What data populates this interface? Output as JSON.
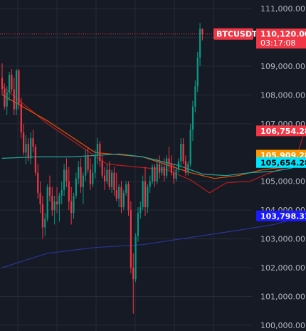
{
  "chart_data": {
    "type": "candlestick",
    "symbol_label": "BTCUSDT",
    "last_price": "110,120.00",
    "countdown": "03:17:08",
    "ylim": [
      99800,
      111300
    ],
    "y_ticks": [
      {
        "value": 111000,
        "label": "111,000.00"
      },
      {
        "value": 110000,
        "label": "110,000.00"
      },
      {
        "value": 109000,
        "label": "109,000.00"
      },
      {
        "value": 108000,
        "label": "108,000.00"
      },
      {
        "value": 107000,
        "label": "107,000.00"
      },
      {
        "value": 105000,
        "label": "105,000.00"
      },
      {
        "value": 104000,
        "label": "104,000.00"
      },
      {
        "value": 103000,
        "label": "103,000.00"
      },
      {
        "value": 102000,
        "label": "102,000.00"
      },
      {
        "value": 101000,
        "label": "101,000.00"
      },
      {
        "value": 100000,
        "label": "100,000.00"
      }
    ],
    "price_badges": [
      {
        "value": 110120.0,
        "label": "110,120.00",
        "color": "#f23645"
      },
      {
        "value": 106754.28,
        "label": "106,754.28",
        "color": "#f23645"
      },
      {
        "value": 105909.28,
        "label": "105,909.28",
        "color": "#ff9800"
      },
      {
        "value": 105654.28,
        "label": "105,654.28",
        "color": "#00e5ff"
      },
      {
        "value": 103798.31,
        "label": "103,798.31",
        "color": "#1a1aff"
      }
    ],
    "ma_lines": [
      {
        "color": "#b71c1c",
        "values": [
          [
            1,
            108300
          ],
          [
            20,
            107000
          ],
          [
            45,
            105600
          ],
          [
            70,
            105400
          ],
          [
            80,
            105050
          ],
          [
            88,
            104600
          ],
          [
            95,
            104950
          ],
          [
            105,
            105000
          ],
          [
            112,
            105250
          ],
          [
            120,
            105500
          ],
          [
            125,
            106000
          ],
          [
            128,
            106754
          ]
        ]
      },
      {
        "color": "#e65100",
        "values": [
          [
            1,
            108000
          ],
          [
            20,
            107100
          ],
          [
            40,
            106000
          ],
          [
            60,
            105850
          ],
          [
            80,
            105300
          ],
          [
            90,
            105100
          ],
          [
            100,
            105200
          ],
          [
            110,
            105400
          ],
          [
            120,
            105500
          ],
          [
            126,
            105800
          ],
          [
            128,
            105909
          ]
        ]
      },
      {
        "color": "#26a69a",
        "values": [
          [
            1,
            105800
          ],
          [
            15,
            105850
          ],
          [
            30,
            105850
          ],
          [
            50,
            105950
          ],
          [
            60,
            105850
          ],
          [
            75,
            105550
          ],
          [
            85,
            105250
          ],
          [
            95,
            105200
          ],
          [
            105,
            105300
          ],
          [
            115,
            105350
          ],
          [
            122,
            105450
          ],
          [
            128,
            105654
          ]
        ]
      },
      {
        "color": "#283593",
        "values": [
          [
            1,
            102000
          ],
          [
            20,
            102500
          ],
          [
            40,
            102700
          ],
          [
            60,
            102800
          ],
          [
            80,
            103050
          ],
          [
            100,
            103300
          ],
          [
            115,
            103500
          ],
          [
            128,
            103798
          ]
        ]
      }
    ],
    "candles": [
      [
        108600,
        109100,
        108000,
        108200
      ],
      [
        108200,
        108400,
        107500,
        107600
      ],
      [
        107600,
        108300,
        107300,
        108100
      ],
      [
        108100,
        108800,
        107800,
        108700
      ],
      [
        108700,
        108900,
        108100,
        108200
      ],
      [
        108200,
        108600,
        107300,
        107500
      ],
      [
        107500,
        108900,
        107300,
        108850
      ],
      [
        108850,
        108900,
        107500,
        107700
      ],
      [
        107700,
        107900,
        106500,
        106700
      ],
      [
        106700,
        107000,
        105900,
        106000
      ],
      [
        106000,
        106600,
        105600,
        106300
      ],
      [
        106300,
        106500,
        105700,
        105800
      ],
      [
        105800,
        106700,
        105600,
        106500
      ],
      [
        106500,
        106800,
        106000,
        106200
      ],
      [
        106200,
        106300,
        105200,
        105300
      ],
      [
        105300,
        105600,
        104400,
        104600
      ],
      [
        104600,
        105000,
        103900,
        104200
      ],
      [
        104200,
        104500,
        103000,
        103400
      ],
      [
        103400,
        103900,
        103100,
        103700
      ],
      [
        103700,
        104900,
        103600,
        104800
      ],
      [
        104800,
        105200,
        104300,
        104500
      ],
      [
        104500,
        104800,
        103800,
        104000
      ],
      [
        104000,
        104500,
        103500,
        104300
      ],
      [
        104300,
        104800,
        103900,
        104200
      ],
      [
        104200,
        104600,
        103600,
        104500
      ],
      [
        104500,
        105000,
        104200,
        104700
      ],
      [
        104700,
        105600,
        104500,
        105400
      ],
      [
        105400,
        105800,
        104800,
        105000
      ],
      [
        105000,
        105500,
        104000,
        104300
      ],
      [
        104300,
        104800,
        103500,
        103900
      ],
      [
        103900,
        104600,
        103700,
        104500
      ],
      [
        104500,
        105300,
        104400,
        105100
      ],
      [
        105100,
        105700,
        104900,
        105500
      ],
      [
        105500,
        105800,
        104600,
        104800
      ],
      [
        104800,
        105300,
        104200,
        105200
      ],
      [
        105200,
        106100,
        105000,
        105900
      ],
      [
        105900,
        106200,
        105300,
        105400
      ],
      [
        105400,
        105800,
        104700,
        104900
      ],
      [
        104900,
        105600,
        104800,
        105300
      ],
      [
        105300,
        106100,
        105100,
        105900
      ],
      [
        105900,
        106500,
        105600,
        106300
      ],
      [
        106300,
        106400,
        105500,
        105700
      ],
      [
        105700,
        105900,
        105100,
        105200
      ],
      [
        105200,
        105500,
        104700,
        105000
      ],
      [
        105000,
        105600,
        104900,
        105400
      ],
      [
        105400,
        105700,
        104700,
        104800
      ],
      [
        104800,
        105400,
        104600,
        105300
      ],
      [
        105300,
        105500,
        104500,
        104700
      ],
      [
        104700,
        105300,
        104300,
        104400
      ],
      [
        104400,
        104900,
        104100,
        104800
      ],
      [
        104800,
        105000,
        103900,
        104100
      ],
      [
        104100,
        104700,
        104000,
        104600
      ],
      [
        104600,
        105000,
        104500,
        104900
      ],
      [
        104900,
        105000,
        103800,
        104000
      ],
      [
        104000,
        104300,
        101800,
        102000
      ],
      [
        102000,
        102500,
        100400,
        101600
      ],
      [
        101600,
        103200,
        101500,
        103100
      ],
      [
        103100,
        104100,
        102900,
        103900
      ],
      [
        103900,
        104300,
        103700,
        104100
      ],
      [
        104100,
        105200,
        104000,
        105000
      ],
      [
        105000,
        105500,
        103800,
        104100
      ],
      [
        104100,
        104900,
        103900,
        104800
      ],
      [
        104800,
        105200,
        104600,
        105000
      ],
      [
        105000,
        105600,
        104900,
        105500
      ],
      [
        105500,
        105600,
        104800,
        105000
      ],
      [
        105000,
        105800,
        104900,
        105600
      ],
      [
        105600,
        105900,
        105100,
        105300
      ],
      [
        105300,
        105700,
        105200,
        105500
      ],
      [
        105500,
        105800,
        105000,
        105200
      ],
      [
        105200,
        105900,
        105100,
        105800
      ],
      [
        105800,
        106200,
        105400,
        105600
      ],
      [
        105600,
        105900,
        105200,
        105300
      ],
      [
        105300,
        105600,
        104900,
        105100
      ],
      [
        105100,
        105500,
        105000,
        105400
      ],
      [
        105400,
        105800,
        105300,
        105700
      ],
      [
        105700,
        106500,
        105500,
        106300
      ],
      [
        106300,
        106500,
        105600,
        105700
      ],
      [
        105700,
        105900,
        105200,
        105300
      ],
      [
        105300,
        105700,
        105200,
        105600
      ],
      [
        105600,
        107000,
        105500,
        106800
      ],
      [
        106800,
        107800,
        106400,
        107600
      ],
      [
        107600,
        108500,
        107400,
        108300
      ],
      [
        108300,
        109500,
        108100,
        109300
      ],
      [
        109300,
        110500,
        109000,
        110300
      ],
      [
        110300,
        110300,
        109900,
        110120
      ]
    ]
  }
}
